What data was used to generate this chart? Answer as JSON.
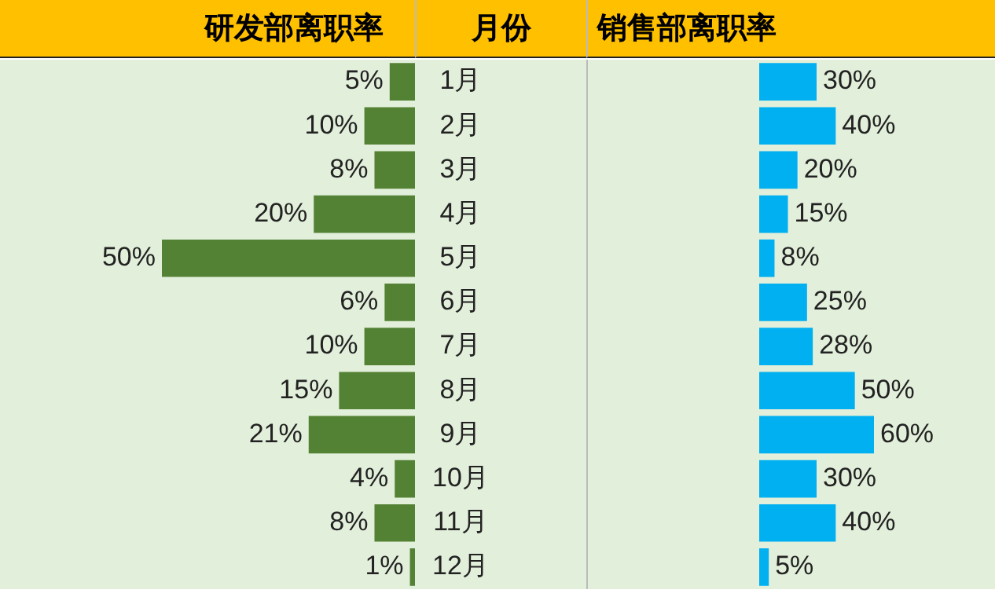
{
  "chart_data": [
    {
      "type": "bar",
      "orientation": "horizontal",
      "title": "研发部离职率",
      "ylabel": "月份",
      "categories": [
        "1月",
        "2月",
        "3月",
        "4月",
        "5月",
        "6月",
        "7月",
        "8月",
        "9月",
        "10月",
        "11月",
        "12月"
      ],
      "values": [
        5,
        10,
        8,
        20,
        50,
        6,
        10,
        15,
        21,
        4,
        8,
        1
      ],
      "value_labels": [
        "5%",
        "10%",
        "8%",
        "20%",
        "50%",
        "6%",
        "10%",
        "15%",
        "21%",
        "4%",
        "8%",
        "1%"
      ],
      "color": "#548235",
      "xlim": [
        50,
        0
      ],
      "tick_labels": "y"
    },
    {
      "type": "bar",
      "orientation": "horizontal",
      "title": "销售部离职率",
      "categories": [
        null,
        null,
        null,
        null,
        null,
        null,
        null,
        null,
        null,
        null,
        null,
        null
      ],
      "values": [
        30,
        40,
        20,
        15,
        8,
        25,
        28,
        50,
        60,
        30,
        40,
        5
      ],
      "value_labels": [
        "30%",
        "40%",
        "20%",
        "15%",
        "8%",
        "25%",
        "28%",
        "50%",
        "60%",
        "30%",
        "40%",
        "5%"
      ],
      "color": "#00b0f0",
      "xlim": [
        0,
        60
      ],
      "tick_labels": false
    }
  ]
}
